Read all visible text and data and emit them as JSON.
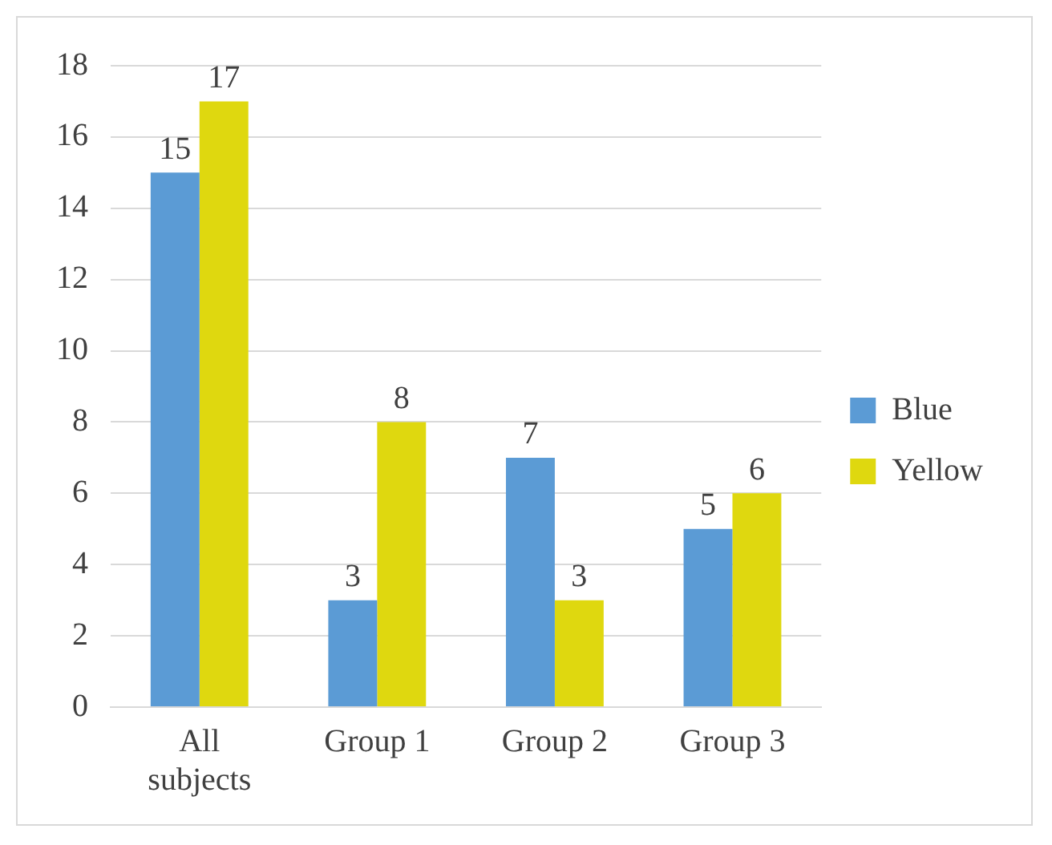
{
  "chart_data": {
    "type": "bar",
    "categories": [
      "All subjects",
      "Group 1",
      "Group 2",
      "Group 3"
    ],
    "series": [
      {
        "name": "Blue",
        "color": "#5b9bd5",
        "values": [
          15,
          3,
          7,
          5
        ]
      },
      {
        "name": "Yellow",
        "color": "#dfd80f",
        "values": [
          17,
          8,
          3,
          6
        ]
      }
    ],
    "ylim": [
      0,
      18
    ],
    "yticks": [
      0,
      2,
      4,
      6,
      8,
      10,
      12,
      14,
      16,
      18
    ],
    "grid": "y",
    "legend": "right",
    "data_labels": true
  }
}
